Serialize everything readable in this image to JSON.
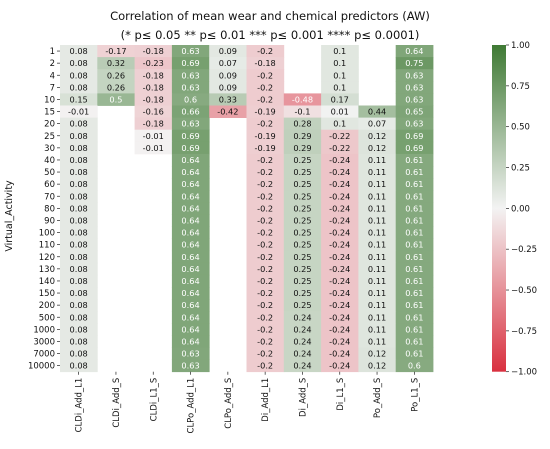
{
  "chart_data": {
    "type": "heatmap",
    "title": "Correlation of mean wear and chemical predictors (AW)",
    "subtitle": "(* p≤ 0.05 ** p≤ 0.01 *** p≤ 0.001 **** p≤ 0.0001)",
    "ylabel": "Virtual_Activity",
    "xlabel": "",
    "columns": [
      "CLDi_Add_L1",
      "CLDi_Add_S",
      "CLDi_L1_S",
      "CLPo_Add_L1",
      "CLPo_Add_S",
      "Di_Add_L1",
      "Di_Add_S",
      "Di_L1_S",
      "Po_Add_S",
      "Po_L1_S"
    ],
    "rows": [
      "1",
      "2",
      "4",
      "7",
      "10",
      "15",
      "20",
      "25",
      "30",
      "40",
      "50",
      "60",
      "70",
      "80",
      "90",
      "100",
      "110",
      "120",
      "130",
      "140",
      "150",
      "200",
      "500",
      "1000",
      "3000",
      "7000",
      "10000"
    ],
    "values": [
      [
        0.08,
        -0.17,
        -0.18,
        0.63,
        0.09,
        -0.2,
        null,
        0.1,
        null,
        0.64
      ],
      [
        0.08,
        0.32,
        -0.23,
        0.69,
        0.07,
        -0.18,
        null,
        0.1,
        null,
        0.75
      ],
      [
        0.08,
        0.26,
        -0.18,
        0.63,
        0.09,
        -0.2,
        null,
        0.1,
        null,
        0.63
      ],
      [
        0.08,
        0.26,
        -0.18,
        0.63,
        0.09,
        -0.2,
        null,
        0.1,
        null,
        0.63
      ],
      [
        0.15,
        0.5,
        -0.18,
        0.6,
        0.33,
        -0.2,
        -0.48,
        0.17,
        null,
        0.63
      ],
      [
        -0.01,
        null,
        -0.16,
        0.66,
        -0.42,
        -0.19,
        -0.1,
        0.01,
        0.44,
        0.65
      ],
      [
        0.08,
        null,
        -0.18,
        0.63,
        null,
        -0.2,
        0.28,
        0.1,
        0.07,
        0.63
      ],
      [
        0.08,
        null,
        -0.01,
        0.69,
        null,
        -0.19,
        0.29,
        -0.22,
        0.12,
        0.69
      ],
      [
        0.08,
        null,
        -0.01,
        0.69,
        null,
        -0.19,
        0.29,
        -0.22,
        0.12,
        0.69
      ],
      [
        0.08,
        null,
        null,
        0.64,
        null,
        -0.2,
        0.25,
        -0.24,
        0.11,
        0.61
      ],
      [
        0.08,
        null,
        null,
        0.64,
        null,
        -0.2,
        0.25,
        -0.24,
        0.11,
        0.61
      ],
      [
        0.08,
        null,
        null,
        0.64,
        null,
        -0.2,
        0.25,
        -0.24,
        0.11,
        0.61
      ],
      [
        0.08,
        null,
        null,
        0.64,
        null,
        -0.2,
        0.25,
        -0.24,
        0.11,
        0.61
      ],
      [
        0.08,
        null,
        null,
        0.64,
        null,
        -0.2,
        0.25,
        -0.24,
        0.11,
        0.61
      ],
      [
        0.08,
        null,
        null,
        0.64,
        null,
        -0.2,
        0.25,
        -0.24,
        0.11,
        0.61
      ],
      [
        0.08,
        null,
        null,
        0.64,
        null,
        -0.2,
        0.25,
        -0.24,
        0.11,
        0.61
      ],
      [
        0.08,
        null,
        null,
        0.64,
        null,
        -0.2,
        0.25,
        -0.24,
        0.11,
        0.61
      ],
      [
        0.08,
        null,
        null,
        0.64,
        null,
        -0.2,
        0.25,
        -0.24,
        0.11,
        0.61
      ],
      [
        0.08,
        null,
        null,
        0.64,
        null,
        -0.2,
        0.25,
        -0.24,
        0.11,
        0.61
      ],
      [
        0.08,
        null,
        null,
        0.64,
        null,
        -0.2,
        0.25,
        -0.24,
        0.11,
        0.61
      ],
      [
        0.08,
        null,
        null,
        0.64,
        null,
        -0.2,
        0.25,
        -0.24,
        0.11,
        0.61
      ],
      [
        0.08,
        null,
        null,
        0.64,
        null,
        -0.2,
        0.25,
        -0.24,
        0.11,
        0.61
      ],
      [
        0.08,
        null,
        null,
        0.64,
        null,
        -0.2,
        0.24,
        -0.24,
        0.11,
        0.61
      ],
      [
        0.08,
        null,
        null,
        0.64,
        null,
        -0.2,
        0.24,
        -0.24,
        0.11,
        0.61
      ],
      [
        0.08,
        null,
        null,
        0.64,
        null,
        -0.2,
        0.24,
        -0.24,
        0.11,
        0.61
      ],
      [
        0.08,
        null,
        null,
        0.63,
        null,
        -0.2,
        0.24,
        -0.24,
        0.12,
        0.61
      ],
      [
        0.08,
        null,
        null,
        0.63,
        null,
        -0.2,
        0.24,
        -0.24,
        0.12,
        0.6
      ]
    ],
    "colorbar": {
      "min": -1.0,
      "max": 1.0,
      "ticks": [
        "1.00",
        "0.75",
        "0.50",
        "0.25",
        "0.00",
        "−0.25",
        "−0.50",
        "−0.75",
        "−1.00"
      ],
      "tick_values": [
        1.0,
        0.75,
        0.5,
        0.25,
        0.0,
        -0.25,
        -0.5,
        -0.75,
        -1.0
      ],
      "colors": {
        "negative": "#d9303f",
        "zero": "#f3f3f3",
        "positive": "#3f7a34"
      }
    },
    "grid": false,
    "legend": "colorbar-right"
  }
}
